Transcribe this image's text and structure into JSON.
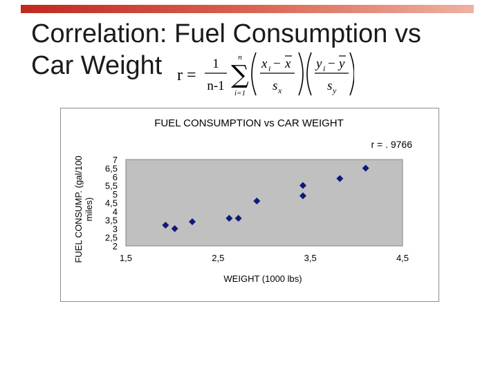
{
  "slide": {
    "title_line1": "Correlation: Fuel Consumption vs",
    "title_line2": "Car Weight"
  },
  "formula": {
    "lhs": "r =",
    "one": "1",
    "n_minus_1": "n-1",
    "sum_top": "n",
    "sum_bottom": "i=1",
    "x_i": "x",
    "x_sub": "i",
    "minus": "−",
    "x_bar": "x",
    "s_x": "s",
    "s_x_sub": "x",
    "y_i": "y",
    "y_sub": "i",
    "y_bar": "y",
    "s_y": "s",
    "s_y_sub": "y",
    "sigma": "∑"
  },
  "colors": {
    "bar_accent": "#c0281e",
    "plot_bg": "#c0c0c0",
    "marker": "#0d1a7a"
  },
  "chart_data": {
    "type": "scatter",
    "title": "FUEL CONSUMPTION vs CAR WEIGHT",
    "annotation": "r = . 9766",
    "xlabel": "WEIGHT (1000 lbs)",
    "ylabel_line1": "FUEL CONSUMP. (gal/100",
    "ylabel_line2": "miles)",
    "xlim": [
      1.5,
      4.5
    ],
    "ylim": [
      2,
      7
    ],
    "x_ticks": [
      1.5,
      2.5,
      3.5,
      4.5
    ],
    "x_tick_labels": [
      "1,5",
      "2,5",
      "3,5",
      "4,5"
    ],
    "y_ticks": [
      2,
      2.5,
      3,
      3.5,
      4,
      4.5,
      5,
      5.5,
      6,
      6.5,
      7
    ],
    "y_tick_labels": [
      "2",
      "2,5",
      "3",
      "3,5",
      "4",
      "4,5",
      "5",
      "5,5",
      "6",
      "6,5",
      "7"
    ],
    "grid": false,
    "series": [
      {
        "x": [
          1.93,
          2.03,
          2.22,
          2.62,
          2.72,
          2.92,
          3.42,
          3.42,
          3.82,
          4.1
        ],
        "y": [
          3.2,
          3.0,
          3.4,
          3.6,
          3.6,
          4.6,
          4.9,
          5.5,
          5.9,
          6.5
        ]
      }
    ]
  }
}
